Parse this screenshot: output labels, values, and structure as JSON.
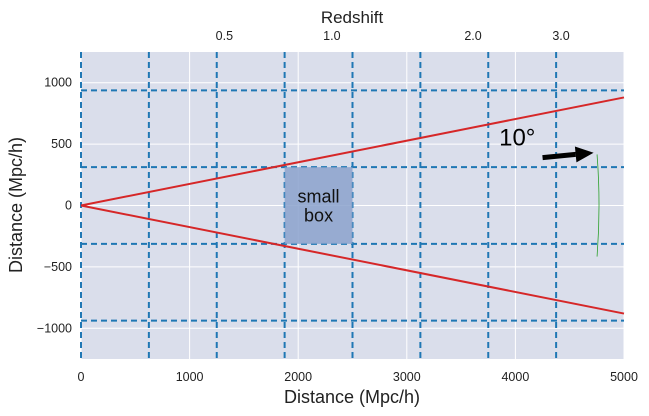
{
  "colors": {
    "plot_background": "#dadeeb",
    "grid": "#ffffff",
    "cell_lines": "#1f77b4",
    "cone": "#d62728",
    "box": "#8ba2cc",
    "arc": "#2ca02c",
    "arrow": "#000000"
  },
  "chart_data": {
    "type": "line",
    "xlabel": "Distance (Mpc/h)",
    "ylabel": "Distance (Mpc/h)",
    "top_axis_label": "Redshift",
    "xlim": [
      0,
      5000
    ],
    "ylim": [
      -1250,
      1250
    ],
    "x_ticks": [
      0,
      1000,
      2000,
      3000,
      4000,
      5000
    ],
    "y_ticks": [
      -1000,
      -500,
      0,
      500,
      1000
    ],
    "x_tick_labels": [
      "0",
      "1000",
      "2000",
      "3000",
      "4000",
      "5000"
    ],
    "y_tick_labels": [
      "−1000",
      "−500",
      "0",
      "500",
      "1000"
    ],
    "top_ticks": [
      {
        "label": "0.5",
        "x": 1320
      },
      {
        "label": "1.0",
        "x": 2310
      },
      {
        "label": "2.0",
        "x": 3610
      },
      {
        "label": "3.0",
        "x": 4420
      }
    ],
    "vertical_cell_lines": [
      0,
      625,
      1250,
      1875,
      2500,
      3125,
      3750,
      4375
    ],
    "horizontal_cell_lines": [
      -937.5,
      -312.5,
      312.5,
      937.5
    ],
    "cone_lines": [
      {
        "x": [
          0,
          5000
        ],
        "y": [
          0,
          880
        ]
      },
      {
        "x": [
          0,
          5000
        ],
        "y": [
          0,
          -880
        ]
      }
    ],
    "highlight_box": {
      "x0": 1875,
      "x1": 2500,
      "y0": -312.5,
      "y1": 312.5,
      "label_lines": [
        "small",
        "box"
      ]
    },
    "arc": {
      "radius": 4770,
      "angle_deg": 10
    },
    "angle_annotation": {
      "text": "10°",
      "text_x": 3850,
      "text_y": 490,
      "arrow_from": [
        4250,
        390
      ],
      "arrow_to": [
        4720,
        430
      ]
    }
  }
}
